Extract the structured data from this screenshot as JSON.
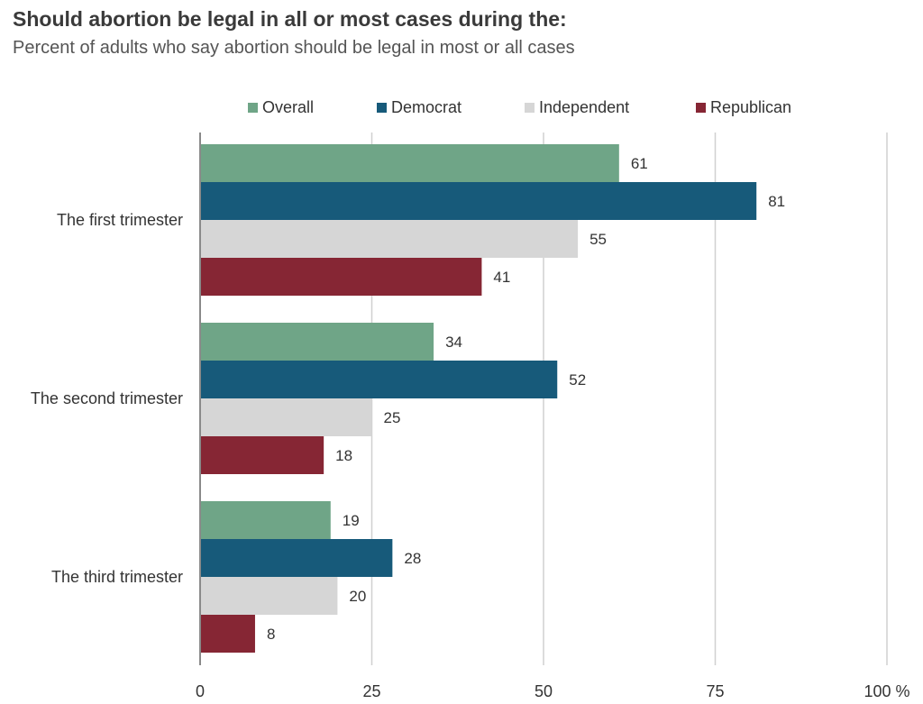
{
  "title": "Should abortion be legal in all or most cases during the:",
  "subtitle": "Percent of adults who say abortion should be legal in most or all cases",
  "colors": {
    "Overall": "#6fa587",
    "Democrat": "#175a7a",
    "Independent": "#d6d6d6",
    "Republican": "#862634",
    "grid": "#d0d0d0",
    "axis": "#8a8a8a"
  },
  "chart_data": {
    "type": "bar",
    "orientation": "horizontal",
    "title": "Should abortion be legal in all or most cases during the:",
    "subtitle": "Percent of adults who say abortion should be legal in most or all cases",
    "categories": [
      "The first trimester",
      "The second trimester",
      "The third trimester"
    ],
    "series": [
      {
        "name": "Overall",
        "values": [
          61,
          34,
          19
        ]
      },
      {
        "name": "Democrat",
        "values": [
          81,
          52,
          28
        ]
      },
      {
        "name": "Independent",
        "values": [
          55,
          25,
          20
        ]
      },
      {
        "name": "Republican",
        "values": [
          41,
          18,
          8
        ]
      }
    ],
    "xlim": [
      0,
      100
    ],
    "xticks": [
      0,
      25,
      50,
      75,
      100
    ],
    "xtick_labels": [
      "0",
      "25",
      "50",
      "75",
      "100 %"
    ],
    "grid": true,
    "legend_position": "top",
    "data_labels": true
  }
}
